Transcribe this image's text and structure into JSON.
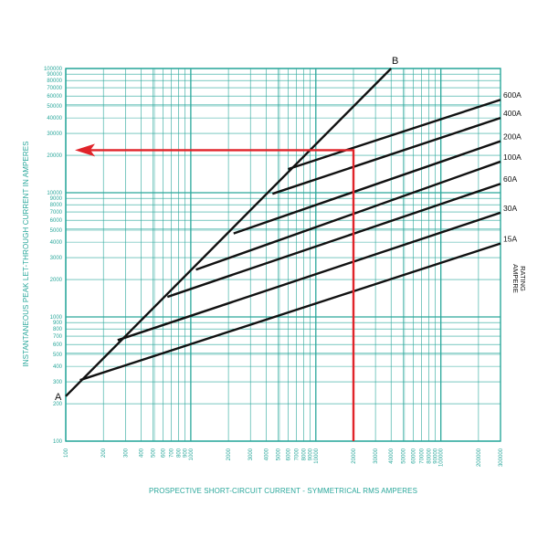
{
  "chart_data": {
    "type": "line",
    "xlabel": "PROSPECTIVE SHORT-CIRCUIT CURRENT - SYMMETRICAL RMS AMPERES",
    "ylabel": "INSTANTANEOUS PEAK LET-THROUGH CURRENT IN AMPERES",
    "rating_label_lines": [
      "AMPERE",
      "RATING"
    ],
    "x_scale": "log",
    "y_scale": "log",
    "xlim": [
      100,
      300000
    ],
    "ylim": [
      100,
      100000
    ],
    "x_tick_labels": [
      {
        "value": 100,
        "label": "100"
      },
      {
        "value": 200,
        "label": "200"
      },
      {
        "value": 300,
        "label": "300"
      },
      {
        "value": 400,
        "label": "400"
      },
      {
        "value": 500,
        "label": "500"
      },
      {
        "value": 600,
        "label": "600"
      },
      {
        "value": 700,
        "label": "700"
      },
      {
        "value": 800,
        "label": "800"
      },
      {
        "value": 900,
        "label": "900"
      },
      {
        "value": 1000,
        "label": "1000"
      },
      {
        "value": 2000,
        "label": "2000"
      },
      {
        "value": 3000,
        "label": "3000"
      },
      {
        "value": 4000,
        "label": "4000"
      },
      {
        "value": 5000,
        "label": "5000"
      },
      {
        "value": 6000,
        "label": "6000"
      },
      {
        "value": 7000,
        "label": "7000"
      },
      {
        "value": 8000,
        "label": "8000"
      },
      {
        "value": 9000,
        "label": "9000"
      },
      {
        "value": 10000,
        "label": "10000"
      },
      {
        "value": 20000,
        "label": "20000"
      },
      {
        "value": 30000,
        "label": "30000"
      },
      {
        "value": 40000,
        "label": "40000"
      },
      {
        "value": 50000,
        "label": "50000"
      },
      {
        "value": 60000,
        "label": "60000"
      },
      {
        "value": 70000,
        "label": "70000"
      },
      {
        "value": 80000,
        "label": "80000"
      },
      {
        "value": 90000,
        "label": "90000"
      },
      {
        "value": 100000,
        "label": "100000"
      },
      {
        "value": 200000,
        "label": "200000"
      },
      {
        "value": 300000,
        "label": "300000"
      }
    ],
    "y_tick_labels": [
      {
        "value": 100,
        "label": "100"
      },
      {
        "value": 200,
        "label": "200"
      },
      {
        "value": 300,
        "label": "300"
      },
      {
        "value": 400,
        "label": "400"
      },
      {
        "value": 500,
        "label": "500"
      },
      {
        "value": 600,
        "label": "600"
      },
      {
        "value": 700,
        "label": "700"
      },
      {
        "value": 800,
        "label": "800"
      },
      {
        "value": 900,
        "label": "900"
      },
      {
        "value": 1000,
        "label": "1000"
      },
      {
        "value": 2000,
        "label": "2000"
      },
      {
        "value": 3000,
        "label": "3000"
      },
      {
        "value": 4000,
        "label": "4000"
      },
      {
        "value": 5000,
        "label": "5000"
      },
      {
        "value": 6000,
        "label": "6000"
      },
      {
        "value": 7000,
        "label": "7000"
      },
      {
        "value": 8000,
        "label": "8000"
      },
      {
        "value": 9000,
        "label": "9000"
      },
      {
        "value": 10000,
        "label": "10000"
      },
      {
        "value": 20000,
        "label": "20000"
      },
      {
        "value": 30000,
        "label": "30000"
      },
      {
        "value": 40000,
        "label": "40000"
      },
      {
        "value": 50000,
        "label": "50000"
      },
      {
        "value": 60000,
        "label": "60000"
      },
      {
        "value": 70000,
        "label": "70000"
      },
      {
        "value": 80000,
        "label": "80000"
      },
      {
        "value": 90000,
        "label": "90000"
      },
      {
        "value": 100000,
        "label": "100000"
      }
    ],
    "grid": true,
    "reference_line": {
      "start_label": "A",
      "end_label": "B",
      "points": [
        [
          100,
          230
        ],
        [
          40000,
          100000
        ]
      ]
    },
    "series": [
      {
        "name": "15A",
        "points": [
          [
            130,
            310
          ],
          [
            300000,
            3900
          ]
        ]
      },
      {
        "name": "30A",
        "points": [
          [
            260,
            650
          ],
          [
            300000,
            6900
          ]
        ]
      },
      {
        "name": "60A",
        "points": [
          [
            650,
            1450
          ],
          [
            300000,
            11800
          ]
        ]
      },
      {
        "name": "100A",
        "points": [
          [
            1100,
            2400
          ],
          [
            300000,
            17800
          ]
        ]
      },
      {
        "name": "200A",
        "points": [
          [
            2200,
            4700
          ],
          [
            300000,
            26000
          ]
        ]
      },
      {
        "name": "400A",
        "points": [
          [
            4500,
            9800
          ],
          [
            300000,
            40000
          ]
        ]
      },
      {
        "name": "600A",
        "points": [
          [
            6000,
            15500
          ],
          [
            300000,
            56000
          ]
        ]
      }
    ],
    "example_path": {
      "points": [
        [
          20000,
          100
        ],
        [
          20000,
          22000
        ],
        [
          100,
          22000
        ]
      ],
      "arrow": "left"
    },
    "colors": {
      "grid": "#2aa79b",
      "curves": "#111111",
      "example": "#e0242a",
      "background": "#ffffff"
    }
  }
}
